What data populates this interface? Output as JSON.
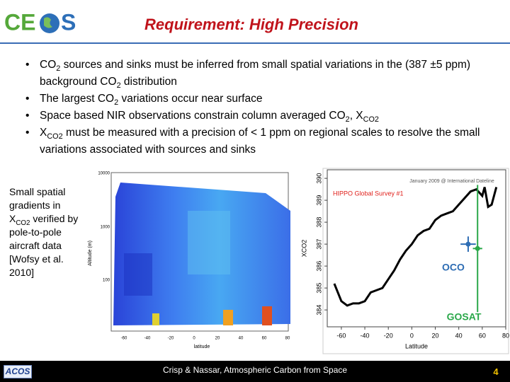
{
  "header": {
    "logo_left": "CE",
    "logo_right": "S",
    "title": "Requirement: High Precision"
  },
  "bullets": [
    [
      {
        "text": "CO"
      },
      {
        "text": "2",
        "sub": true
      },
      {
        "text": " sources and sinks must be inferred from small spatial variations in the (387 ±5 ppm) background CO"
      },
      {
        "text": "2",
        "sub": true
      },
      {
        "text": " distribution"
      }
    ],
    [
      {
        "text": "The largest CO"
      },
      {
        "text": "2",
        "sub": true
      },
      {
        "text": " variations  occur near surface"
      }
    ],
    [
      {
        "text": "Space based NIR observations constrain column averaged CO"
      },
      {
        "text": "2",
        "sub": true
      },
      {
        "text": ", X"
      },
      {
        "text": "CO2",
        "sub": true
      }
    ],
    [
      {
        "text": "X"
      },
      {
        "text": "CO2",
        "sub": true
      },
      {
        "text": " must be measured with a precision of < 1 ppm on regional scales to resolve the small variations associated with sources and sinks"
      }
    ]
  ],
  "side_text": [
    {
      "text": "Small spatial gradients in X"
    },
    {
      "text": "CO2",
      "sub": true
    },
    {
      "text": " verified by pole-to-pole aircraft data [Wofsy et al. 2010]"
    }
  ],
  "heatmap": {
    "ylabel": "Altitude (m)",
    "xlabel": "latitude",
    "yticks": [
      "10000",
      "1000",
      "100"
    ],
    "xticks": [
      "-60",
      "-40",
      "-20",
      "0",
      "20",
      "40",
      "60",
      "80"
    ]
  },
  "chart_data": {
    "type": "line",
    "title": "January 2009 @ International Dateline",
    "legend": "HIPPO Global Survey #1",
    "xlabel": "Latitude",
    "ylabel": "XCO2",
    "color": "#000000",
    "legend_color": "#e0201b",
    "x": [
      -66,
      -60,
      -55,
      -50,
      -45,
      -40,
      -35,
      -30,
      -25,
      -20,
      -15,
      -10,
      -5,
      0,
      5,
      10,
      15,
      20,
      25,
      30,
      35,
      40,
      45,
      50,
      55,
      60,
      62,
      65,
      68,
      72
    ],
    "values": [
      385.2,
      384.4,
      384.2,
      384.3,
      384.3,
      384.4,
      384.8,
      384.9,
      385.0,
      385.4,
      385.8,
      386.3,
      386.7,
      387.0,
      387.4,
      387.6,
      387.7,
      388.1,
      388.3,
      388.4,
      388.5,
      388.8,
      389.1,
      389.4,
      389.5,
      389.2,
      389.6,
      388.7,
      388.8,
      389.6
    ],
    "xlim": [
      -72,
      80
    ],
    "ylim": [
      383.23,
      390.39
    ],
    "xticks": [
      -60,
      -40,
      -20,
      0,
      20,
      40,
      60,
      80
    ],
    "yticks": [
      384,
      385,
      386,
      387,
      388,
      389,
      390
    ],
    "points": [
      {
        "name": "OCO",
        "x": 48,
        "value": 387.0,
        "x_error": 6.5,
        "error": 0.35,
        "color": "#2e6db4"
      },
      {
        "name": "GOSAT",
        "x": 56,
        "value": 386.8,
        "x_error": 4,
        "error": 2.9,
        "color": "#2aa84a"
      }
    ]
  },
  "footer": {
    "badge": "ACOS",
    "text": "Crisp & Nassar,  Atmospheric Carbon from Space",
    "page": "4"
  }
}
